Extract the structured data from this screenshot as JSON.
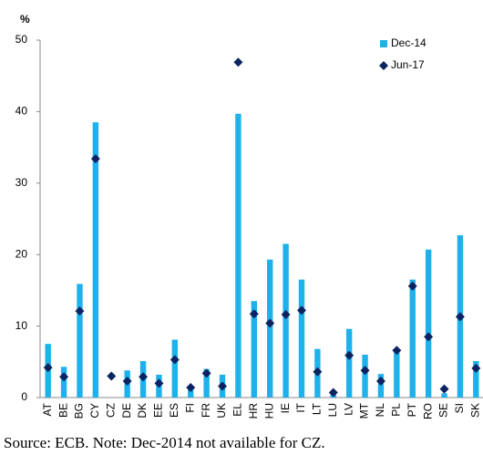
{
  "chart_data": {
    "type": "bar",
    "y_label": "%",
    "categories": [
      "AT",
      "BE",
      "BG",
      "CY",
      "CZ",
      "DE",
      "DK",
      "EE",
      "ES",
      "FI",
      "FR",
      "UK",
      "EL",
      "HR",
      "HU",
      "IE",
      "IT",
      "LT",
      "LU",
      "LV",
      "MT",
      "NL",
      "PL",
      "PT",
      "RO",
      "SE",
      "SI",
      "SK"
    ],
    "series": [
      {
        "name": "Dec-14",
        "color": "#1eb1ec",
        "mark": "bar",
        "values": [
          7.5,
          4.3,
          15.9,
          38.5,
          null,
          3.8,
          5.1,
          3.2,
          8.1,
          1.2,
          4.0,
          3.2,
          39.7,
          13.5,
          19.3,
          21.5,
          16.5,
          6.8,
          0.4,
          9.6,
          6.0,
          3.3,
          6.5,
          16.5,
          20.7,
          0.6,
          22.7,
          5.1
        ]
      },
      {
        "name": "Jun-17",
        "color": "#0b2461",
        "mark": "diamond",
        "values": [
          4.2,
          2.9,
          12.1,
          33.4,
          3.0,
          2.3,
          2.9,
          2.0,
          5.3,
          1.4,
          3.4,
          1.6,
          46.9,
          11.7,
          10.4,
          11.6,
          12.2,
          3.6,
          0.7,
          5.9,
          3.8,
          2.3,
          6.6,
          15.6,
          8.5,
          1.2,
          11.3,
          4.1
        ]
      }
    ],
    "ylim": [
      0,
      50
    ],
    "yticks": [
      0,
      10,
      20,
      30,
      40,
      50
    ],
    "grid": false,
    "legend": "top-right",
    "source": "Source: ECB. Note: Dec-2014 not available for CZ."
  }
}
